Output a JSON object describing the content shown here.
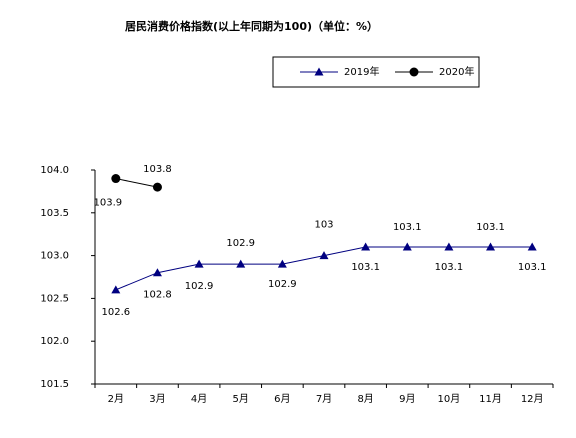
{
  "chart_data": {
    "type": "line",
    "title": "居民消费价格指数(以上年同期为100)（单位：%）",
    "categories": [
      "2月",
      "3月",
      "4月",
      "5月",
      "6月",
      "7月",
      "8月",
      "9月",
      "10月",
      "11月",
      "12月"
    ],
    "series": [
      {
        "name": "2019年",
        "color": "#000080",
        "marker": "triangle",
        "values": [
          102.6,
          102.8,
          102.9,
          102.9,
          102.9,
          103,
          103.1,
          103.1,
          103.1,
          103.1,
          103.1
        ]
      },
      {
        "name": "2020年",
        "color": "#000000",
        "marker": "circle",
        "values": [
          103.9,
          103.8,
          null,
          null,
          null,
          null,
          null,
          null,
          null,
          null,
          null
        ]
      }
    ],
    "ylim": [
      101.5,
      104.0
    ],
    "yticks": [
      {
        "value": 101.5,
        "label": "101.5"
      },
      {
        "value": 102.0,
        "label": "102.0"
      },
      {
        "value": 102.5,
        "label": "102.5"
      },
      {
        "value": 103.0,
        "label": "103.0"
      },
      {
        "value": 103.5,
        "label": "103.5"
      },
      {
        "value": 104.0,
        "label": "104.0"
      }
    ],
    "grid": false,
    "legend": "top-right"
  }
}
